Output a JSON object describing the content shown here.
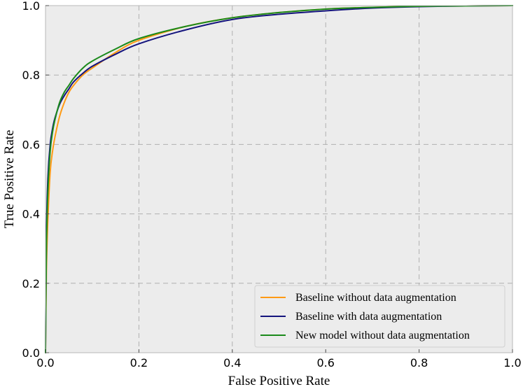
{
  "chart_data": {
    "type": "line",
    "title": "",
    "xlabel": "False Positive Rate",
    "ylabel": "True Positive Rate",
    "xlim": [
      0.0,
      1.0
    ],
    "ylim": [
      0.0,
      1.0
    ],
    "xticks": [
      "0.0",
      "0.2",
      "0.4",
      "0.6",
      "0.8",
      "1.0"
    ],
    "yticks": [
      "0.0",
      "0.2",
      "0.4",
      "0.6",
      "0.8",
      "1.0"
    ],
    "grid": true,
    "legend_position": "bottom-right",
    "colors": {
      "background": "#ececec",
      "grid": "#b0b0b0"
    },
    "series": [
      {
        "name": "Baseline without data augmentation",
        "color": "#ff9a14",
        "x": [
          0.0,
          0.002,
          0.005,
          0.01,
          0.015,
          0.02,
          0.03,
          0.04,
          0.05,
          0.06,
          0.08,
          0.1,
          0.15,
          0.2,
          0.3,
          0.4,
          0.5,
          0.6,
          0.7,
          0.8,
          0.9,
          1.0
        ],
        "y": [
          0.0,
          0.24,
          0.38,
          0.52,
          0.58,
          0.62,
          0.68,
          0.72,
          0.75,
          0.77,
          0.8,
          0.82,
          0.865,
          0.9,
          0.94,
          0.965,
          0.98,
          0.99,
          0.995,
          0.998,
          0.999,
          1.0
        ]
      },
      {
        "name": "Baseline with data augmentation",
        "color": "#14147d",
        "x": [
          0.0,
          0.002,
          0.005,
          0.01,
          0.015,
          0.02,
          0.03,
          0.04,
          0.05,
          0.06,
          0.08,
          0.1,
          0.15,
          0.2,
          0.3,
          0.4,
          0.5,
          0.6,
          0.7,
          0.8,
          0.9,
          1.0
        ],
        "y": [
          0.0,
          0.34,
          0.5,
          0.6,
          0.645,
          0.675,
          0.715,
          0.74,
          0.76,
          0.78,
          0.805,
          0.825,
          0.86,
          0.89,
          0.93,
          0.96,
          0.975,
          0.985,
          0.993,
          0.997,
          0.999,
          1.0
        ]
      },
      {
        "name": "New model without data augmentation",
        "color": "#1b8a1b",
        "x": [
          0.0,
          0.002,
          0.005,
          0.01,
          0.015,
          0.02,
          0.03,
          0.04,
          0.05,
          0.06,
          0.08,
          0.1,
          0.15,
          0.2,
          0.3,
          0.4,
          0.5,
          0.6,
          0.7,
          0.8,
          0.9,
          1.0
        ],
        "y": [
          0.0,
          0.3,
          0.46,
          0.58,
          0.635,
          0.67,
          0.72,
          0.75,
          0.77,
          0.79,
          0.82,
          0.84,
          0.875,
          0.905,
          0.94,
          0.965,
          0.98,
          0.99,
          0.995,
          0.998,
          0.999,
          1.0
        ]
      }
    ]
  }
}
